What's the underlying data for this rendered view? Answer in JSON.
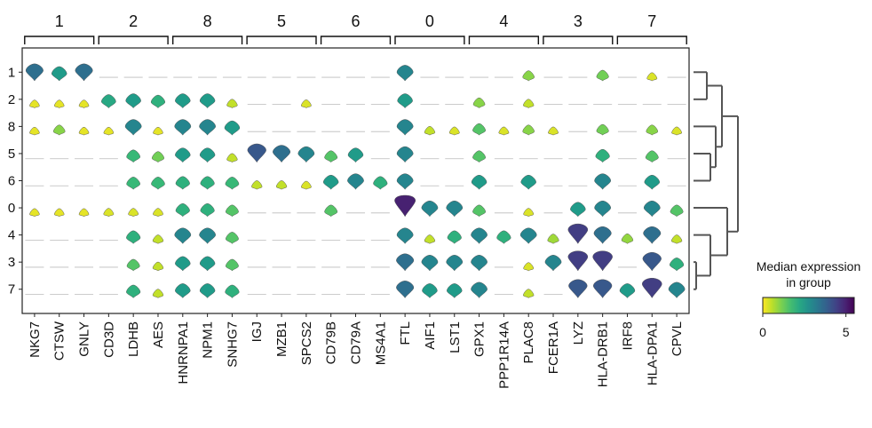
{
  "chart_data": {
    "type": "stacked_violin",
    "group_brackets": [
      {
        "label": "1",
        "genes": [
          "NKG7",
          "CTSW",
          "GNLY"
        ]
      },
      {
        "label": "2",
        "genes": [
          "CD3D",
          "LDHB",
          "AES"
        ]
      },
      {
        "label": "8",
        "genes": [
          "HNRNPA1",
          "NPM1",
          "SNHG7"
        ]
      },
      {
        "label": "5",
        "genes": [
          "IGJ",
          "MZB1",
          "SPCS2"
        ]
      },
      {
        "label": "6",
        "genes": [
          "CD79B",
          "CD79A",
          "MS4A1"
        ]
      },
      {
        "label": "0",
        "genes": [
          "FTL",
          "AIF1",
          "LST1"
        ]
      },
      {
        "label": "4",
        "genes": [
          "GPX1",
          "PPP1R14A",
          "PLAC8"
        ]
      },
      {
        "label": "3",
        "genes": [
          "FCER1A",
          "LYZ",
          "HLA-DRB1"
        ]
      },
      {
        "label": "7",
        "genes": [
          "IRF8",
          "HLA-DPA1",
          "CPVL"
        ]
      }
    ],
    "genes": [
      "NKG7",
      "CTSW",
      "GNLY",
      "CD3D",
      "LDHB",
      "AES",
      "HNRNPA1",
      "NPM1",
      "SNHG7",
      "IGJ",
      "MZB1",
      "SPCS2",
      "CD79B",
      "CD79A",
      "MS4A1",
      "FTL",
      "AIF1",
      "LST1",
      "GPX1",
      "PPP1R14A",
      "PLAC8",
      "FCER1A",
      "LYZ",
      "HLA-DRB1",
      "IRF8",
      "HLA-DPA1",
      "CPVL"
    ],
    "rows": [
      "1",
      "2",
      "8",
      "5",
      "6",
      "0",
      "4",
      "3",
      "7"
    ],
    "median_expression": [
      [
        3.5,
        2.5,
        3.5,
        0,
        0,
        0,
        0,
        0,
        0,
        0,
        0,
        0,
        0,
        0,
        0,
        3.0,
        0,
        0,
        0,
        0,
        1.0,
        0,
        0,
        1.2,
        0,
        0.3,
        0
      ],
      [
        0.2,
        0.2,
        0.2,
        2.2,
        2.5,
        2.0,
        2.5,
        2.5,
        0.5,
        0,
        0,
        0.3,
        0,
        0,
        0,
        2.5,
        0,
        0,
        1.0,
        0,
        0.5,
        0,
        0,
        0,
        0,
        0,
        0
      ],
      [
        0.2,
        1.0,
        0.2,
        0.2,
        3.0,
        0.2,
        3.0,
        3.0,
        2.5,
        0,
        0,
        0,
        0,
        0,
        0,
        3.0,
        0.5,
        0.3,
        1.5,
        0.3,
        1.0,
        0.3,
        0,
        1.2,
        0,
        1.0,
        0.3
      ],
      [
        0,
        0,
        0,
        0,
        1.8,
        1.2,
        2.5,
        2.5,
        0.5,
        4.0,
        3.5,
        3.0,
        1.5,
        2.5,
        0,
        3.0,
        0,
        0,
        1.5,
        0,
        0,
        0,
        0,
        2.0,
        0,
        1.5,
        0
      ],
      [
        0,
        0,
        0,
        0,
        1.8,
        1.8,
        2.0,
        2.0,
        1.8,
        0.5,
        0.5,
        0.3,
        2.5,
        3.0,
        2.0,
        3.0,
        0,
        0,
        2.5,
        0,
        2.5,
        0,
        0,
        3.0,
        0,
        2.5,
        0
      ],
      [
        0.2,
        0.2,
        0.2,
        0.3,
        0.3,
        0.3,
        2.0,
        2.0,
        1.5,
        0,
        0,
        0,
        1.5,
        0,
        0,
        5.0,
        3.0,
        3.0,
        1.5,
        0,
        0.3,
        0,
        2.5,
        3.0,
        0,
        3.0,
        1.5
      ],
      [
        0,
        0,
        0,
        0,
        2.0,
        0.5,
        3.0,
        3.0,
        1.5,
        0,
        0,
        0,
        0,
        0,
        0,
        3.0,
        0.5,
        2.0,
        3.0,
        2.0,
        3.0,
        0.8,
        4.5,
        3.5,
        0.9,
        3.5,
        0.5
      ],
      [
        0,
        0,
        0,
        0,
        1.5,
        0.5,
        2.5,
        2.5,
        1.5,
        0,
        0,
        0,
        0,
        0,
        0,
        3.5,
        3.0,
        3.0,
        3.0,
        0,
        0.3,
        3.0,
        4.5,
        4.5,
        0,
        4.0,
        2.0
      ],
      [
        0,
        0,
        0,
        0,
        2.0,
        0.5,
        2.5,
        2.5,
        2.0,
        0,
        0,
        0,
        0,
        0,
        0,
        3.5,
        2.5,
        2.5,
        3.0,
        0,
        0.5,
        0,
        4.0,
        4.0,
        2.5,
        4.5,
        3.0
      ]
    ],
    "colorbar": {
      "title_line1": "Median expression",
      "title_line2": "in group",
      "min_label": "0",
      "max_label": "5",
      "range": [
        0,
        5.5
      ]
    },
    "dendrogram": {
      "leaf_order": [
        "1",
        "2",
        "8",
        "5",
        "6",
        "0",
        "4",
        "3",
        "7"
      ]
    },
    "colormap": "viridis_r"
  }
}
